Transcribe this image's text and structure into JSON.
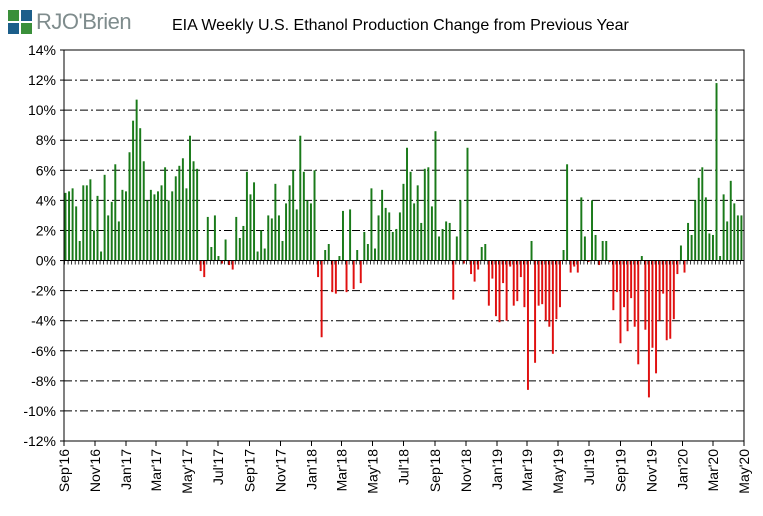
{
  "logo": {
    "text": "RJO'Brien"
  },
  "chart_data": {
    "type": "bar",
    "title": "EIA Weekly U.S. Ethanol Production Change from Previous Year",
    "xlabel": "",
    "ylabel": "",
    "ylim": [
      -12,
      14
    ],
    "y_ticks": [
      "14%",
      "12%",
      "10%",
      "8%",
      "6%",
      "4%",
      "2%",
      "0%",
      "-2%",
      "-4%",
      "-6%",
      "-8%",
      "-10%",
      "-12%"
    ],
    "x_ticks": [
      "Sep'16",
      "Nov'16",
      "Jan'17",
      "Mar'17",
      "May'17",
      "Jul'17",
      "Sep'17",
      "Nov'17",
      "Jan'18",
      "Mar'18",
      "May'18",
      "Jul'18",
      "Sep'18",
      "Nov'18",
      "Jan'19",
      "Mar'19",
      "May'19",
      "Jul'19",
      "Sep'19",
      "Nov'19",
      "Jan'20",
      "Mar'20",
      "May'20"
    ],
    "grid": true,
    "positive_color": "#1a7a1a",
    "negative_color": "#e01010",
    "x_start": "2016-09-02",
    "week_days": 7,
    "values": [
      4.5,
      4.6,
      4.8,
      3.6,
      1.3,
      5.0,
      5.0,
      5.4,
      2.0,
      4.3,
      0.6,
      5.7,
      3.0,
      3.9,
      6.4,
      2.6,
      4.7,
      4.6,
      7.2,
      9.3,
      10.7,
      8.8,
      6.6,
      4.0,
      4.7,
      4.4,
      4.6,
      5.0,
      6.2,
      4.0,
      4.6,
      5.6,
      6.3,
      6.8,
      4.8,
      8.3,
      6.6,
      6.1,
      -0.7,
      -1.1,
      2.9,
      0.9,
      3.0,
      0.3,
      -0.2,
      1.4,
      -0.3,
      -0.6,
      2.9,
      1.5,
      2.3,
      5.9,
      4.4,
      5.2,
      0.6,
      2.0,
      0.8,
      3.0,
      2.8,
      5.1,
      3.0,
      1.3,
      3.8,
      5.0,
      6.0,
      3.4,
      8.3,
      5.9,
      4.0,
      3.8,
      6.0,
      -1.1,
      -5.1,
      0.7,
      1.1,
      -2.1,
      -2.2,
      0.3,
      3.3,
      -2.1,
      3.4,
      -1.9,
      0.7,
      -1.5,
      1.9,
      1.1,
      4.8,
      0.8,
      3.0,
      4.7,
      3.5,
      3.2,
      1.9,
      2.1,
      3.2,
      5.1,
      7.5,
      5.9,
      3.8,
      5.0,
      2.5,
      6.1,
      6.2,
      3.6,
      8.6,
      1.6,
      2.1,
      2.6,
      2.5,
      -2.6,
      1.6,
      4.0,
      -0.2,
      7.5,
      -0.9,
      -1.4,
      -0.6,
      0.9,
      1.1,
      -3.0,
      -1.2,
      -3.7,
      -4.1,
      -1.5,
      -4.0,
      -0.4,
      -3.0,
      -2.7,
      -1.1,
      -3.1,
      -8.6,
      1.3,
      -6.8,
      -3.0,
      -2.9,
      -4.0,
      -4.4,
      -6.2,
      -3.9,
      -3.1,
      0.7,
      6.4,
      -0.8,
      -0.4,
      -0.8,
      4.2,
      1.6,
      -0.1,
      4.0,
      1.7,
      -0.3,
      1.3,
      1.3,
      -0.1,
      -3.3,
      -2.1,
      -5.5,
      -3.1,
      -4.7,
      -2.5,
      -4.4,
      -6.9,
      0.3,
      -4.6,
      -9.1,
      -5.8,
      -7.5,
      -4.0,
      -2.2,
      -5.3,
      -5.2,
      -3.9,
      -0.9,
      1.0,
      -0.8,
      2.5,
      1.7,
      4.0,
      5.5,
      6.2,
      4.2,
      1.8,
      1.7,
      11.8,
      0.3,
      4.4,
      2.6,
      5.3,
      3.8,
      3.0,
      3.0
    ]
  }
}
